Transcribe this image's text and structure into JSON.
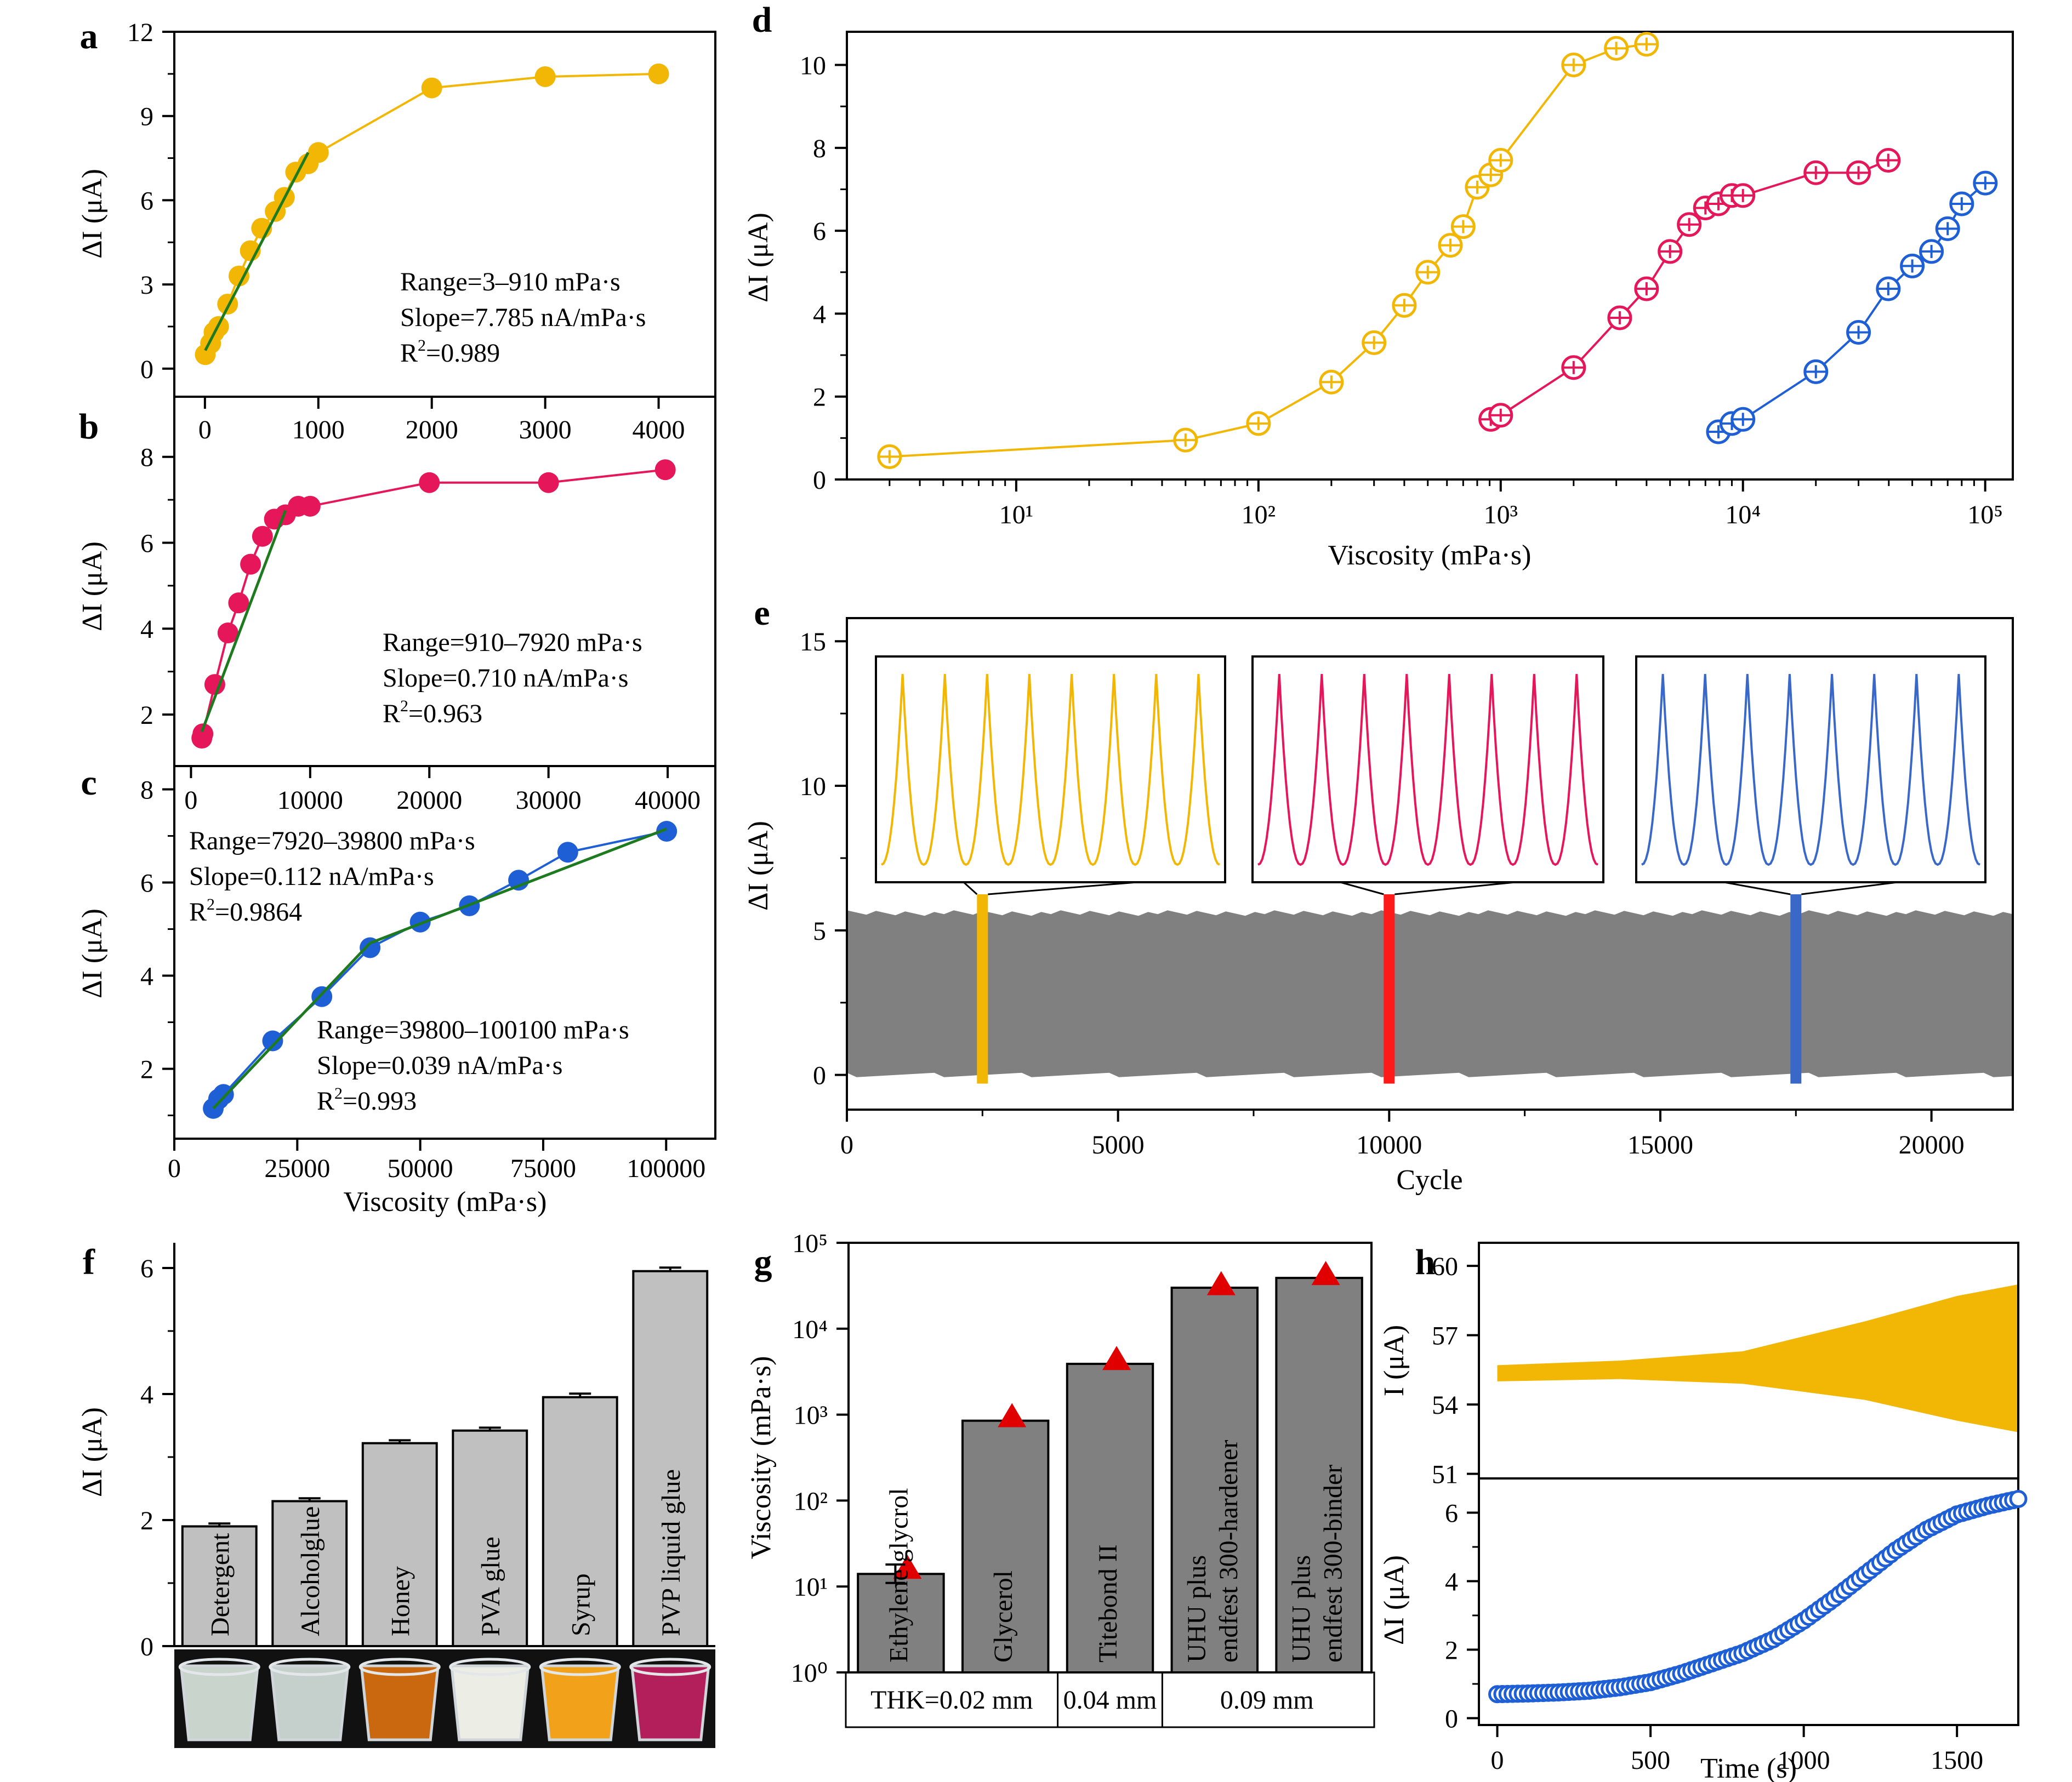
{
  "chart_data": [
    {
      "id": "a",
      "type": "scatter",
      "panel_label": "a",
      "xlabel": "",
      "ylabel": "ΔI (μA)",
      "xlim": [
        -270,
        4500
      ],
      "ylim": [
        -1,
        12
      ],
      "xticks": [
        0,
        1000,
        2000,
        3000,
        4000
      ],
      "yticks": [
        0,
        3,
        6,
        9,
        12
      ],
      "color": "#f2b705",
      "series": [
        {
          "x": [
            3,
            50,
            80,
            120,
            200,
            300,
            400,
            500,
            620,
            700,
            800,
            910,
            1000,
            2000,
            3000,
            4000
          ],
          "y": [
            0.5,
            0.9,
            1.3,
            1.5,
            2.3,
            3.3,
            4.2,
            5.0,
            5.6,
            6.1,
            7.0,
            7.3,
            7.7,
            10.0,
            10.4,
            10.5
          ]
        }
      ],
      "fit": {
        "x": [
          3,
          910
        ],
        "y": [
          0.65,
          7.7
        ],
        "color": "#1e7a1e"
      },
      "annotations": [
        "Range=3–910 mPa·s",
        "Slope=7.785 nA/mPa·s",
        "R²=0.989"
      ]
    },
    {
      "id": "b",
      "type": "scatter",
      "panel_label": "b",
      "xlabel": "",
      "ylabel": "ΔI (μA)",
      "xlim": [
        -1400,
        44000
      ],
      "ylim": [
        0.8,
        9.4
      ],
      "xticks": [
        0,
        10000,
        20000,
        30000,
        40000
      ],
      "yticks": [
        2,
        4,
        6,
        8
      ],
      "color": "#e5165a",
      "series": [
        {
          "x": [
            910,
            1000,
            2000,
            3100,
            4000,
            5000,
            6000,
            7000,
            7920,
            9000,
            10000,
            20000,
            30000,
            39800
          ],
          "y": [
            1.45,
            1.55,
            2.7,
            3.9,
            4.6,
            5.5,
            6.15,
            6.55,
            6.65,
            6.85,
            6.85,
            7.4,
            7.4,
            7.7
          ]
        }
      ],
      "fit": {
        "x": [
          910,
          7920
        ],
        "y": [
          1.6,
          6.75
        ],
        "color": "#1e7a1e"
      },
      "annotations": [
        "Range=910–7920 mPa·s",
        "Slope=0.710 nA/mPa·s",
        "R²=0.963"
      ]
    },
    {
      "id": "c",
      "type": "scatter",
      "panel_label": "c",
      "xlabel": "Viscosity (mPa·s)",
      "ylabel": "ΔI (μA)",
      "xlim": [
        0,
        110000
      ],
      "ylim": [
        0.5,
        8.5
      ],
      "xticks": [
        0,
        25000,
        50000,
        75000,
        100000
      ],
      "yticks": [
        2,
        4,
        6,
        8
      ],
      "color": "#1f5fd6",
      "series": [
        {
          "x": [
            7920,
            9000,
            10000,
            20000,
            30000,
            39800,
            50000,
            60000,
            70000,
            80000,
            100100
          ],
          "y": [
            1.15,
            1.35,
            1.45,
            2.6,
            3.55,
            4.6,
            5.15,
            5.5,
            6.05,
            6.65,
            7.1
          ]
        }
      ],
      "fit": [
        {
          "x": [
            7920,
            39800
          ],
          "y": [
            1.15,
            4.7
          ],
          "color": "#1e7a1e"
        },
        {
          "x": [
            39800,
            100100
          ],
          "y": [
            4.7,
            7.15
          ],
          "color": "#1e7a1e"
        }
      ],
      "annotations": [
        "Range=7920–39800 mPa·s",
        "Slope=0.112 nA/mPa·s",
        "R²=0.9864",
        "Range=39800–100100 mPa·s",
        "Slope=0.039 nA/mPa·s",
        "R²=0.993"
      ]
    },
    {
      "id": "d",
      "type": "scatter",
      "panel_label": "d",
      "xlabel": "Viscosity (mPa·s)",
      "ylabel": "ΔI (μA)",
      "xscale": "log",
      "xlim": [
        2,
        130000
      ],
      "ylim": [
        0,
        10.8
      ],
      "xticks": [
        10,
        100,
        1000,
        10000,
        100000
      ],
      "xticklabels": [
        "10¹",
        "10²",
        "10³",
        "10⁴",
        "10⁵"
      ],
      "yticks": [
        0,
        2,
        4,
        6,
        8,
        10
      ],
      "series": [
        {
          "color": "#f2b705",
          "x": [
            3,
            50,
            100,
            200,
            300,
            400,
            500,
            620,
            700,
            800,
            910,
            1000,
            2000,
            3000,
            4000
          ],
          "y": [
            0.55,
            0.95,
            1.35,
            2.35,
            3.3,
            4.2,
            5.0,
            5.65,
            6.1,
            7.05,
            7.35,
            7.7,
            10.0,
            10.4,
            10.5
          ]
        },
        {
          "color": "#e5165a",
          "x": [
            910,
            1000,
            2000,
            3100,
            4000,
            5000,
            6000,
            7000,
            7920,
            9000,
            10000,
            20000,
            30000,
            39800
          ],
          "y": [
            1.45,
            1.55,
            2.7,
            3.9,
            4.6,
            5.5,
            6.15,
            6.55,
            6.65,
            6.85,
            6.85,
            7.4,
            7.4,
            7.7
          ]
        },
        {
          "color": "#1f5fd6",
          "x": [
            7920,
            9000,
            10000,
            20000,
            30000,
            39800,
            50000,
            60000,
            70000,
            80000,
            100100
          ],
          "y": [
            1.15,
            1.35,
            1.45,
            2.6,
            3.55,
            4.6,
            5.15,
            5.5,
            6.05,
            6.65,
            7.15
          ]
        }
      ]
    },
    {
      "id": "e",
      "type": "area",
      "panel_label": "e",
      "xlabel": "Cycle",
      "ylabel": "ΔI (μA)",
      "xlim": [
        0,
        21500
      ],
      "ylim": [
        -1.2,
        15.8
      ],
      "xticks": [
        0,
        5000,
        10000,
        15000,
        20000
      ],
      "yticks": [
        0,
        5,
        10,
        15
      ],
      "band": {
        "min": 0,
        "max": 5.6,
        "color": "#808080"
      },
      "markers": [
        {
          "x": 2500,
          "color": "#f2b705"
        },
        {
          "x": 10000,
          "color": "#ff1a1a"
        },
        {
          "x": 17500,
          "color": "#3a68c8"
        }
      ],
      "insets": [
        {
          "color": "#f2b705",
          "peaks": 8
        },
        {
          "color": "#e5165a",
          "peaks": 8
        },
        {
          "color": "#3a68c8",
          "peaks": 8
        }
      ]
    },
    {
      "id": "f",
      "type": "bar",
      "panel_label": "f",
      "xlabel": "",
      "ylabel": "ΔI (μA)",
      "ylim": [
        0,
        6.4
      ],
      "yticks": [
        0,
        2,
        4,
        6
      ],
      "categories": [
        "Detergent",
        "Alcoholglue",
        "Honey",
        "PVA glue",
        "Syrup",
        "PVP liquid glue"
      ],
      "values": [
        1.9,
        2.3,
        3.22,
        3.42,
        3.95,
        5.95
      ],
      "errors": [
        0.02,
        0.02,
        0.02,
        0.02,
        0.03,
        0.03
      ],
      "bar_color": "#c0c0c0",
      "photo_colors": [
        "#c9d4cd",
        "#c5cfcb",
        "#c9680f",
        "#eceee6",
        "#f2a21a",
        "#b21f5b"
      ]
    },
    {
      "id": "g",
      "type": "bar",
      "panel_label": "g",
      "xlabel": "",
      "ylabel": "Viscosity (mPa·s)",
      "yscale": "log",
      "ylim": [
        1,
        100000
      ],
      "yticks": [
        1,
        10,
        100,
        1000,
        10000,
        100000
      ],
      "yticklabels": [
        "10⁰",
        "10¹",
        "10²",
        "10³",
        "10⁴",
        "10⁵"
      ],
      "categories": [
        "Ethylene glycrol",
        "Glycerol",
        "Titebond II",
        "UHU plus endfest 300-hardener",
        "UHU plus endfest 300-binder"
      ],
      "bar_labels": [
        [
          "Ethylene glycrol"
        ],
        [
          "Glycerol"
        ],
        [
          "Titebond II"
        ],
        [
          "UHU plus",
          "endfest 300-hardener"
        ],
        [
          "UHU plus",
          "endfest 300-binder"
        ]
      ],
      "values": [
        14,
        850,
        3900,
        30000,
        39000
      ],
      "markers": [
        16,
        930,
        4300,
        32000,
        42000
      ],
      "errors_low": [
        11,
        null,
        null,
        null,
        null
      ],
      "errors_high": [
        18,
        null,
        null,
        null,
        null
      ],
      "bar_color": "#808080",
      "marker_color": "#e00000",
      "groups": [
        {
          "label": "THK=0.02 mm",
          "span": [
            0,
            1
          ]
        },
        {
          "label": "0.04 mm",
          "span": [
            2,
            2
          ]
        },
        {
          "label": "0.09 mm",
          "span": [
            3,
            4
          ]
        }
      ]
    },
    {
      "id": "h-top",
      "type": "area",
      "panel_label": "h",
      "xlabel": "",
      "ylabel": "I (μA)",
      "xlim": [
        -60,
        1700
      ],
      "ylim": [
        50.8,
        61.0
      ],
      "yticks": [
        51,
        54,
        57,
        60
      ],
      "color": "#f2b705",
      "envelope": {
        "x": [
          0,
          400,
          800,
          1200,
          1500,
          1700
        ],
        "upper": [
          55.7,
          55.9,
          56.3,
          57.6,
          58.7,
          59.2
        ],
        "lower": [
          55.0,
          55.1,
          54.9,
          54.2,
          53.3,
          52.8
        ]
      }
    },
    {
      "id": "h-bottom",
      "type": "scatter",
      "xlabel": "Time (s)",
      "ylabel": "ΔI (μA)",
      "xlim": [
        -60,
        1700
      ],
      "ylim": [
        -0.2,
        7.0
      ],
      "xticks": [
        0,
        500,
        1000,
        1500
      ],
      "yticks": [
        0,
        2,
        4,
        6
      ],
      "color": "#1f5fd6",
      "series": [
        {
          "x": [
            0,
            100,
            200,
            300,
            400,
            500,
            600,
            700,
            800,
            900,
            1000,
            1100,
            1200,
            1300,
            1400,
            1500,
            1600,
            1700
          ],
          "y": [
            0.7,
            0.72,
            0.75,
            0.8,
            0.9,
            1.05,
            1.3,
            1.6,
            1.9,
            2.3,
            2.85,
            3.5,
            4.2,
            4.9,
            5.5,
            5.95,
            6.2,
            6.4
          ]
        }
      ]
    }
  ]
}
